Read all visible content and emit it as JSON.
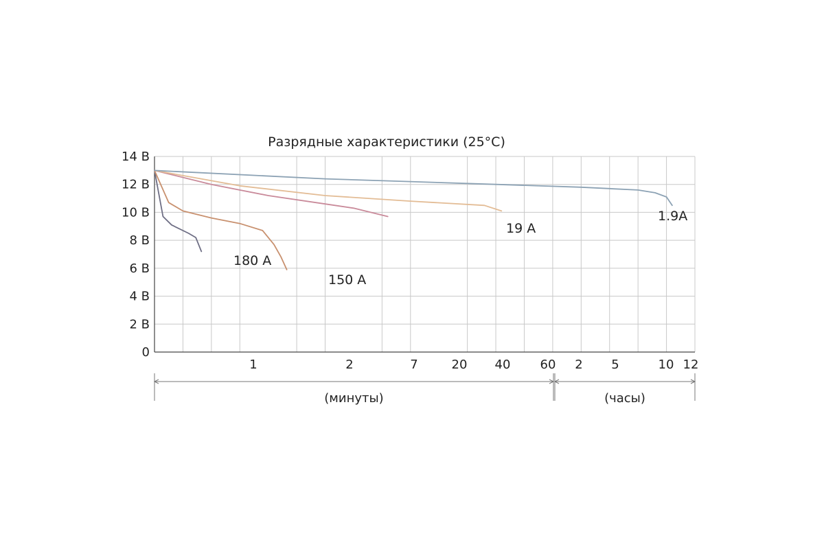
{
  "chart_data": {
    "type": "line",
    "title": "Разрядные характеристики (25°C)",
    "y_unit": "В",
    "ylim": [
      0,
      14
    ],
    "y_ticks": [
      {
        "value": 0,
        "label": "0"
      },
      {
        "value": 2,
        "label": "2 В"
      },
      {
        "value": 4,
        "label": "4 В"
      },
      {
        "value": 6,
        "label": "6 В"
      },
      {
        "value": 8,
        "label": "8 В"
      },
      {
        "value": 10,
        "label": "10 В"
      },
      {
        "value": 12,
        "label": "12 В"
      },
      {
        "value": 14,
        "label": "14 В"
      }
    ],
    "x_ticks": [
      "1",
      "2",
      "7",
      "20",
      "40",
      "60",
      "2",
      "5",
      "10",
      "12"
    ],
    "x_ranges": [
      {
        "label": "(минуты)"
      },
      {
        "label": "(часы)"
      }
    ],
    "grid": true,
    "series": [
      {
        "name": "180 А",
        "color": "#6e6e84",
        "points": [
          [
            0,
            13.0
          ],
          [
            0.3,
            9.7
          ],
          [
            0.6,
            9.1
          ],
          [
            1.2,
            8.5
          ],
          [
            1.45,
            8.2
          ],
          [
            1.65,
            7.2
          ]
        ]
      },
      {
        "name": "150 А",
        "color": "#c8906e",
        "points": [
          [
            0,
            13.0
          ],
          [
            0.5,
            10.7
          ],
          [
            1.0,
            10.1
          ],
          [
            2.0,
            9.6
          ],
          [
            3.0,
            9.2
          ],
          [
            3.8,
            8.7
          ],
          [
            4.2,
            7.7
          ],
          [
            4.45,
            6.8
          ],
          [
            4.65,
            5.9
          ]
        ]
      },
      {
        "name": "",
        "color": "#c98a9a",
        "points": [
          [
            0,
            13.0
          ],
          [
            2.0,
            12.0
          ],
          [
            4.0,
            11.2
          ],
          [
            6.0,
            10.6
          ],
          [
            7.0,
            10.3
          ],
          [
            8.2,
            9.7
          ]
        ]
      },
      {
        "name": "19 А",
        "color": "#e3bc95",
        "points": [
          [
            0,
            13.0
          ],
          [
            3.0,
            11.9
          ],
          [
            6.0,
            11.2
          ],
          [
            9.0,
            10.8
          ],
          [
            11.6,
            10.5
          ],
          [
            12.2,
            10.1
          ]
        ]
      },
      {
        "name": "1.9A",
        "color": "#8ca2b4",
        "points": [
          [
            0,
            13.0
          ],
          [
            6.0,
            12.4
          ],
          [
            12.0,
            12.0
          ],
          [
            15.0,
            11.8
          ],
          [
            17.0,
            11.6
          ],
          [
            17.6,
            11.4
          ],
          [
            18.0,
            11.1
          ],
          [
            18.2,
            10.5
          ]
        ]
      }
    ]
  }
}
